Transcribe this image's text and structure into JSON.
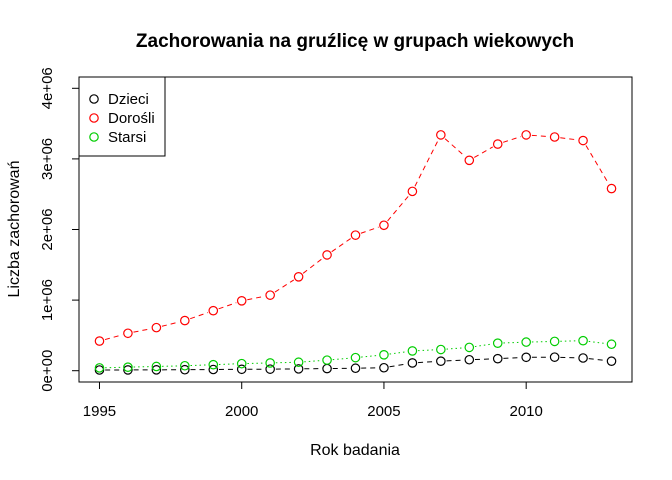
{
  "chart_data": {
    "type": "line",
    "title": "Zachorowania na gruźlicę w grupach wiekowych",
    "xlabel": "Rok badania",
    "ylabel": "Liczba zachorowań",
    "x": [
      1995,
      1996,
      1997,
      1998,
      1999,
      2000,
      2001,
      2002,
      2003,
      2004,
      2005,
      2006,
      2007,
      2008,
      2009,
      2010,
      2011,
      2012,
      2013
    ],
    "xlim": [
      1994.28,
      2013.72
    ],
    "ylim": [
      -160000,
      4160000
    ],
    "xticks": [
      1995,
      2000,
      2005,
      2010
    ],
    "xtick_labels": [
      "1995",
      "2000",
      "2005",
      "2010"
    ],
    "yticks": [
      0,
      1000000,
      2000000,
      3000000,
      4000000
    ],
    "ytick_labels": [
      "0e+00",
      "1e+06",
      "2e+06",
      "3e+06",
      "4e+06"
    ],
    "grid": false,
    "legend_position": "top-left",
    "series": [
      {
        "name": "Dzieci",
        "color": "#000000",
        "line_style": "dashed",
        "marker": "open-circle",
        "values": [
          10000,
          11000,
          12000,
          14000,
          17000,
          20000,
          22000,
          26000,
          30000,
          35000,
          42000,
          110000,
          135000,
          155000,
          170000,
          190000,
          192000,
          180000,
          135000
        ]
      },
      {
        "name": "Dorośli",
        "color": "#ff0000",
        "line_style": "dashed",
        "marker": "open-circle",
        "values": [
          420000,
          530000,
          610000,
          710000,
          850000,
          990000,
          1070000,
          1330000,
          1640000,
          1920000,
          2060000,
          2540000,
          3340000,
          2980000,
          3210000,
          3340000,
          3310000,
          3260000,
          2580000
        ]
      },
      {
        "name": "Starsi",
        "color": "#00cd00",
        "line_style": "dotted",
        "marker": "open-circle",
        "values": [
          40000,
          50000,
          60000,
          70000,
          85000,
          100000,
          110000,
          120000,
          150000,
          185000,
          225000,
          280000,
          300000,
          330000,
          390000,
          405000,
          415000,
          425000,
          375000
        ]
      }
    ]
  }
}
